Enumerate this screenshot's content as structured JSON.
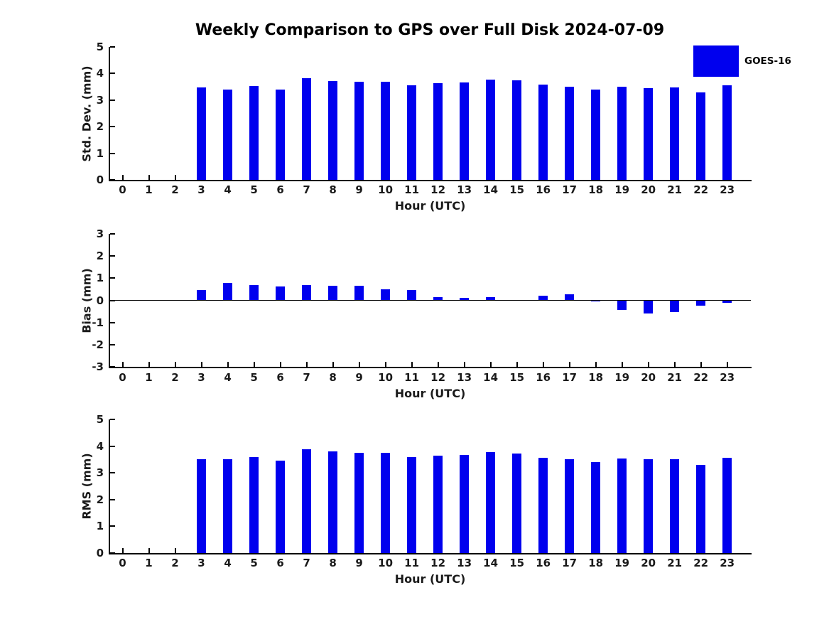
{
  "title": "Weekly Comparison to GPS over Full Disk 2024-07-09",
  "legend": {
    "label": "GOES-16",
    "position": "top-right"
  },
  "colors": {
    "bar": "#0000ee",
    "axis": "#000000",
    "text": "#1a1a1a"
  },
  "chart_data": [
    {
      "type": "bar",
      "series_name": "GOES-16",
      "ylabel": "Std. Dev. (mm)",
      "xlabel": "Hour (UTC)",
      "categories": [
        "0",
        "1",
        "2",
        "3",
        "4",
        "5",
        "6",
        "7",
        "8",
        "9",
        "10",
        "11",
        "12",
        "13",
        "14",
        "15",
        "16",
        "17",
        "18",
        "19",
        "20",
        "21",
        "22",
        "23"
      ],
      "values": [
        0,
        0,
        0,
        3.47,
        3.4,
        3.53,
        3.4,
        3.82,
        3.72,
        3.7,
        3.7,
        3.56,
        3.64,
        3.67,
        3.76,
        3.73,
        3.58,
        3.51,
        3.4,
        3.51,
        3.46,
        3.48,
        3.3,
        3.55
      ],
      "ylim": [
        0,
        5
      ],
      "yticks": [
        0,
        1,
        2,
        3,
        4,
        5
      ],
      "grid": false,
      "zero_line": false
    },
    {
      "type": "bar",
      "series_name": "GOES-16",
      "ylabel": "Bias (mm)",
      "xlabel": "Hour (UTC)",
      "categories": [
        "0",
        "1",
        "2",
        "3",
        "4",
        "5",
        "6",
        "7",
        "8",
        "9",
        "10",
        "11",
        "12",
        "13",
        "14",
        "15",
        "16",
        "17",
        "18",
        "19",
        "20",
        "21",
        "22",
        "23"
      ],
      "values": [
        0,
        0,
        0,
        0.45,
        0.78,
        0.68,
        0.63,
        0.7,
        0.66,
        0.66,
        0.5,
        0.46,
        0.15,
        0.1,
        0.13,
        0,
        0.22,
        0.26,
        -0.06,
        -0.44,
        -0.58,
        -0.52,
        -0.25,
        -0.12
      ],
      "ylim": [
        -3,
        3
      ],
      "yticks": [
        -3,
        -2,
        -1,
        0,
        1,
        2,
        3
      ],
      "grid": false,
      "zero_line": true
    },
    {
      "type": "bar",
      "series_name": "GOES-16",
      "ylabel": "RMS (mm)",
      "xlabel": "Hour (UTC)",
      "categories": [
        "0",
        "1",
        "2",
        "3",
        "4",
        "5",
        "6",
        "7",
        "8",
        "9",
        "10",
        "11",
        "12",
        "13",
        "14",
        "15",
        "16",
        "17",
        "18",
        "19",
        "20",
        "21",
        "22",
        "23"
      ],
      "values": [
        0,
        0,
        0,
        3.51,
        3.51,
        3.58,
        3.46,
        3.87,
        3.79,
        3.76,
        3.74,
        3.58,
        3.65,
        3.66,
        3.77,
        3.73,
        3.57,
        3.51,
        3.39,
        3.54,
        3.51,
        3.51,
        3.3,
        3.56
      ],
      "ylim": [
        0,
        5
      ],
      "yticks": [
        0,
        1,
        2,
        3,
        4,
        5
      ],
      "grid": false,
      "zero_line": false
    }
  ]
}
